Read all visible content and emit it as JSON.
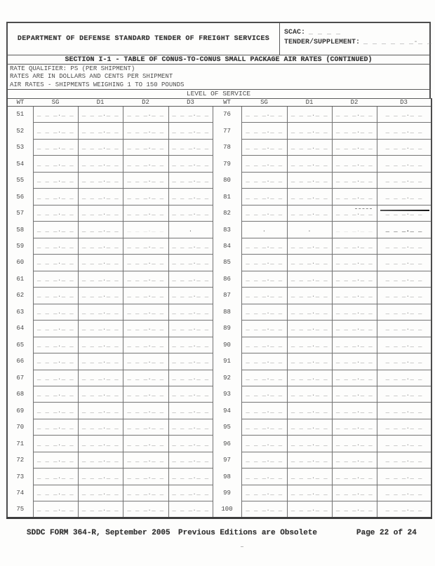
{
  "form_header": {
    "title": "DEPARTMENT OF DEFENSE STANDARD TENDER OF FREIGHT SERVICES",
    "scac_label": "SCAC:",
    "scac_blank": "_ _ _ _",
    "tender_label": "TENDER/SUPPLEMENT:",
    "tender_blank": "_ _ _ _ _ _-_ _"
  },
  "section_title": "SECTION I-1 - TABLE OF CONUS-TO-CONUS SMALL PACKAGE AIR RATES (CONTINUED)",
  "rate_qualifier_lines": [
    "RATE QUALIFIER: PS (PER SHIPMENT)",
    "RATES ARE IN DOLLARS AND CENTS PER SHIPMENT",
    "AIR RATES - SHIPMENTS WEIGHING 1 TO 150 POUNDS"
  ],
  "table": {
    "level_of_service_label": "LEVEL OF SERVICE",
    "column_headers": [
      "WT",
      "SG",
      "D1",
      "D2",
      "D3",
      "WT",
      "SG",
      "D1",
      "D2",
      "D3"
    ],
    "rate_columns": [
      "SG",
      "D1",
      "D2",
      "D3"
    ],
    "blank_pattern": "_ _ _._ _",
    "dot_pattern": ".",
    "left_weights": [
      51,
      52,
      53,
      54,
      55,
      56,
      57,
      58,
      59,
      60,
      61,
      62,
      63,
      64,
      65,
      66,
      67,
      68,
      69,
      70,
      71,
      72,
      73,
      74,
      75
    ],
    "right_weights": [
      76,
      77,
      78,
      79,
      80,
      81,
      82,
      83,
      84,
      85,
      86,
      87,
      88,
      89,
      90,
      91,
      92,
      93,
      94,
      95,
      96,
      97,
      98,
      99,
      100
    ],
    "cell_variants": {
      "58": {
        "D2": "faint",
        "D3": "dot"
      },
      "82": {
        "D2": "fragment",
        "D3": "line"
      },
      "83": {
        "SG": "dot",
        "D1": "dot",
        "D2": "faint",
        "D3": "bold"
      }
    }
  },
  "footer": {
    "form_id": "SDDC FORM 364-R, September 2005",
    "editions_note": "Previous Editions are Obsolete",
    "page_indicator": "Page 22 of 24"
  },
  "colors": {
    "ink": "#383838",
    "grid_line": "#707070",
    "blank_dash": "#8c8c8c"
  }
}
